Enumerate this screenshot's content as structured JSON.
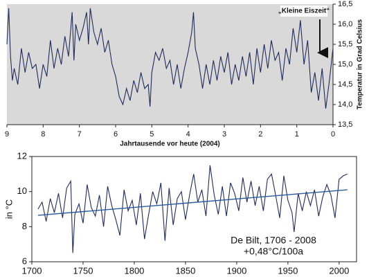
{
  "chart_data": [
    {
      "type": "line",
      "x_label": "Jahrtausende vor heute (2004)",
      "y_label": "Temperatur in Grad Celsius",
      "annotation": "„Kleine Eiszeit“",
      "color": "#1f2a5a",
      "background": "#d9d9d9",
      "xlim": [
        9,
        0
      ],
      "xticks": [
        9,
        8,
        7,
        6,
        5,
        4,
        3,
        2,
        1,
        0
      ],
      "ylim": [
        13.5,
        16.5
      ],
      "yticks": [
        {
          "value": 13.5,
          "label": "13,5"
        },
        {
          "value": 14.0,
          "label": "14,0"
        },
        {
          "value": 14.5,
          "label": "14,5"
        },
        {
          "value": 15.0,
          "label": "15,0"
        },
        {
          "value": 15.5,
          "label": "15,5"
        },
        {
          "value": 16.0,
          "label": "16,0"
        },
        {
          "value": 16.5,
          "label": "16,5"
        }
      ],
      "x": [
        9.0,
        8.95,
        8.9,
        8.85,
        8.8,
        8.7,
        8.6,
        8.5,
        8.4,
        8.3,
        8.2,
        8.1,
        8.0,
        7.9,
        7.8,
        7.7,
        7.6,
        7.5,
        7.4,
        7.3,
        7.2,
        7.15,
        7.1,
        7.0,
        6.9,
        6.8,
        6.75,
        6.7,
        6.6,
        6.5,
        6.4,
        6.3,
        6.2,
        6.1,
        6.0,
        5.9,
        5.8,
        5.7,
        5.6,
        5.5,
        5.4,
        5.3,
        5.2,
        5.1,
        5.05,
        5.0,
        4.9,
        4.8,
        4.7,
        4.6,
        4.5,
        4.4,
        4.3,
        4.2,
        4.1,
        4.0,
        3.9,
        3.85,
        3.8,
        3.7,
        3.6,
        3.5,
        3.4,
        3.3,
        3.2,
        3.1,
        3.0,
        2.9,
        2.8,
        2.7,
        2.6,
        2.5,
        2.4,
        2.3,
        2.2,
        2.1,
        2.0,
        1.9,
        1.8,
        1.7,
        1.6,
        1.5,
        1.4,
        1.3,
        1.2,
        1.1,
        1.0,
        0.9,
        0.8,
        0.7,
        0.6,
        0.5,
        0.4,
        0.3,
        0.2,
        0.1,
        0.0
      ],
      "values": [
        15.5,
        16.4,
        15.2,
        14.6,
        14.9,
        14.5,
        15.4,
        14.8,
        15.3,
        14.9,
        15.0,
        14.4,
        15.0,
        14.7,
        15.6,
        14.9,
        15.4,
        15.0,
        15.7,
        15.2,
        16.3,
        15.1,
        16.0,
        15.6,
        15.9,
        16.3,
        15.5,
        16.4,
        15.8,
        15.5,
        15.9,
        15.3,
        15.6,
        15.0,
        14.7,
        14.2,
        14.0,
        14.4,
        14.1,
        14.6,
        14.3,
        14.8,
        14.4,
        14.5,
        13.95,
        14.8,
        15.3,
        15.1,
        15.4,
        14.9,
        15.1,
        14.5,
        15.0,
        14.4,
        14.9,
        15.3,
        15.8,
        16.3,
        15.4,
        15.0,
        14.4,
        15.0,
        14.5,
        15.1,
        14.6,
        15.2,
        14.8,
        15.3,
        14.5,
        15.0,
        14.6,
        15.2,
        14.7,
        15.3,
        14.5,
        15.4,
        14.8,
        15.5,
        14.9,
        15.6,
        15.1,
        15.3,
        14.6,
        15.4,
        15.0,
        15.9,
        15.3,
        16.1,
        15.0,
        15.6,
        14.3,
        14.8,
        14.1,
        14.9,
        13.9,
        14.6,
        15.4
      ]
    },
    {
      "type": "line",
      "y_label": "in °C",
      "annotation": "De Bilt, 1706 - 2008",
      "annotation2": "+0,48°C/100a",
      "color": "#1f2a5a",
      "trend_color": "#2a5a9a",
      "xlim": [
        1700,
        2017
      ],
      "xticks": [
        1700,
        1750,
        1800,
        1850,
        1900,
        1950,
        2000
      ],
      "ylim": [
        6,
        12
      ],
      "yticks": [
        6,
        8,
        10,
        12
      ],
      "x": [
        1706,
        1710,
        1714,
        1718,
        1722,
        1726,
        1730,
        1734,
        1738,
        1740,
        1742,
        1746,
        1750,
        1754,
        1758,
        1762,
        1766,
        1770,
        1774,
        1778,
        1782,
        1786,
        1790,
        1794,
        1798,
        1802,
        1806,
        1810,
        1814,
        1818,
        1822,
        1826,
        1830,
        1834,
        1838,
        1842,
        1846,
        1850,
        1854,
        1858,
        1862,
        1866,
        1870,
        1874,
        1878,
        1882,
        1886,
        1890,
        1894,
        1898,
        1902,
        1906,
        1910,
        1914,
        1918,
        1922,
        1926,
        1930,
        1934,
        1938,
        1942,
        1946,
        1950,
        1954,
        1956,
        1960,
        1964,
        1968,
        1972,
        1976,
        1980,
        1984,
        1988,
        1992,
        1996,
        2000,
        2004,
        2008
      ],
      "values": [
        9.0,
        9.4,
        8.3,
        9.6,
        8.8,
        9.9,
        8.5,
        10.2,
        10.6,
        6.5,
        8.7,
        9.3,
        8.2,
        10.4,
        9.1,
        8.6,
        9.8,
        8.0,
        10.3,
        9.2,
        8.4,
        7.5,
        10.1,
        8.9,
        9.5,
        8.1,
        9.9,
        7.3,
        8.7,
        10.0,
        9.3,
        10.5,
        7.2,
        10.2,
        8.1,
        9.6,
        10.0,
        8.4,
        9.8,
        11.0,
        9.4,
        10.1,
        8.6,
        11.5,
        9.8,
        8.7,
        10.3,
        8.6,
        10.5,
        9.9,
        8.9,
        10.8,
        9.4,
        10.6,
        9.2,
        10.3,
        8.9,
        10.7,
        11.0,
        9.8,
        8.5,
        10.9,
        9.5,
        8.8,
        7.7,
        9.9,
        8.9,
        10.0,
        9.2,
        10.1,
        8.6,
        9.7,
        10.4,
        9.8,
        8.5,
        10.7,
        10.9,
        11.0
      ],
      "trend_x": [
        1706,
        2008
      ],
      "trend_values": [
        8.65,
        10.1
      ]
    }
  ]
}
